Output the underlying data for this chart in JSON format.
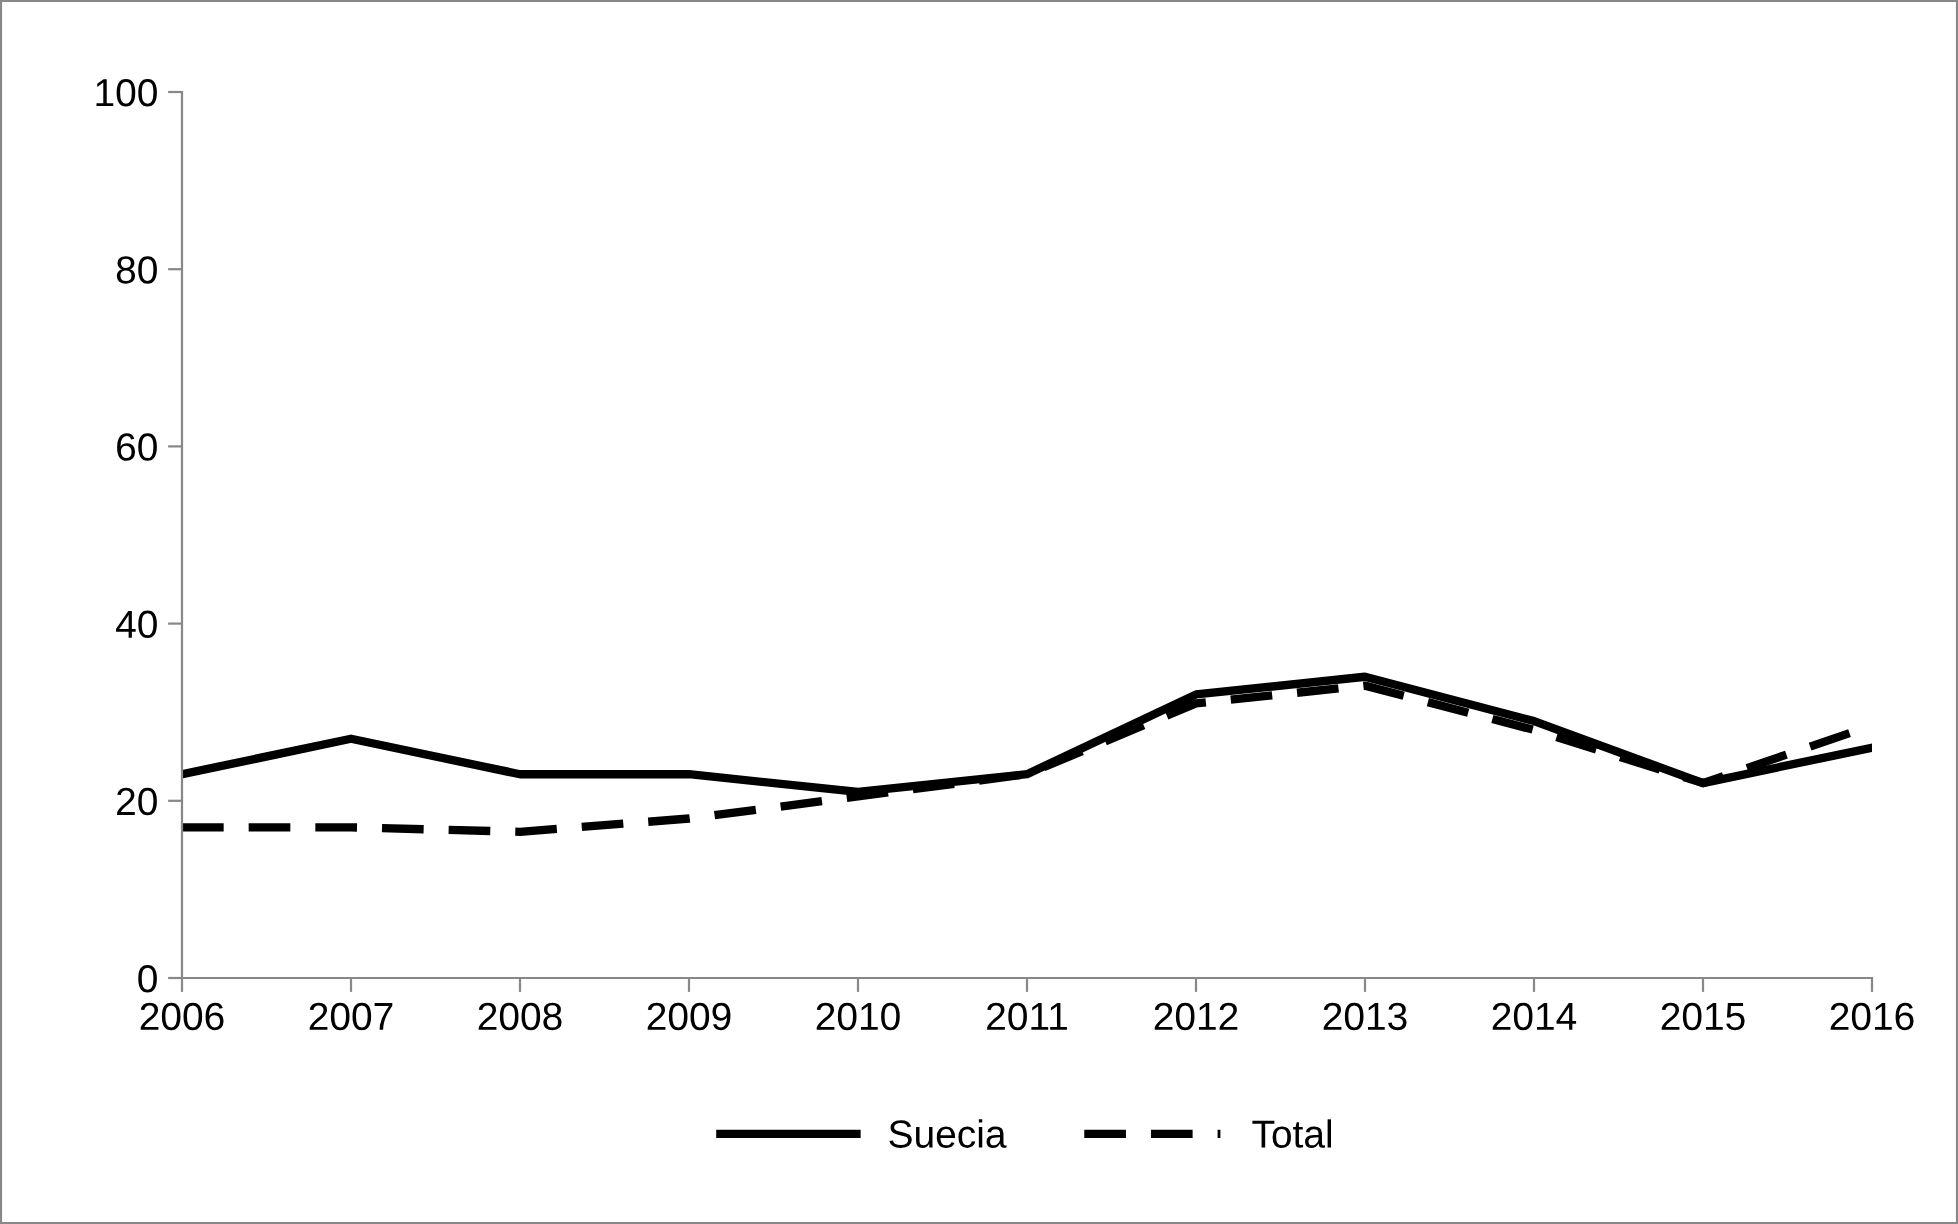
{
  "chart_data": {
    "type": "line",
    "x": [
      2006,
      2007,
      2008,
      2009,
      2010,
      2011,
      2012,
      2013,
      2014,
      2015,
      2016
    ],
    "series": [
      {
        "name": "Suecia",
        "color": "#000000",
        "line_style": "solid",
        "values": [
          23,
          27,
          23,
          23,
          21,
          23,
          32,
          34,
          29,
          22,
          26
        ]
      },
      {
        "name": "Total",
        "color": "#000000",
        "line_style": "dashed",
        "values": [
          17,
          17,
          16.5,
          18,
          20.5,
          23,
          31,
          33,
          28,
          22,
          28.5
        ]
      }
    ],
    "xlim": [
      2006,
      2016
    ],
    "xticks": [
      2006,
      2007,
      2008,
      2009,
      2010,
      2011,
      2012,
      2013,
      2014,
      2015,
      2016
    ],
    "ylim": [
      0,
      100
    ],
    "yticks": [
      0,
      20,
      40,
      60,
      80,
      100
    ],
    "grid": false,
    "legend": "bottom",
    "marker": "none"
  }
}
